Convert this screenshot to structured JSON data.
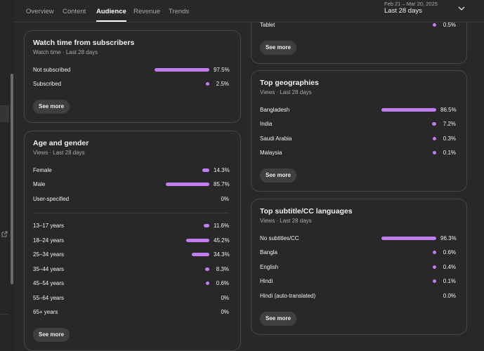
{
  "nav": {
    "tabs": [
      "Overview",
      "Content",
      "Audience",
      "Revenue",
      "Trends"
    ],
    "active_tab": "Audience"
  },
  "date_range": {
    "dates": "Feb 21 – Mar 20, 2025",
    "period": "Last 28 days"
  },
  "bar_color": "#c27cf2",
  "cards": [
    {
      "groups": [
        [
          {
            "label": "Tablet",
            "value": 0.5,
            "value_label": "0.5%"
          }
        ]
      ],
      "button": "See more"
    },
    {
      "title": "Watch time from subscribers",
      "subtitle": "Watch time · Last 28 days",
      "groups": [
        [
          {
            "label": "Not subscribed",
            "value": 97.5,
            "value_label": "97.5%"
          },
          {
            "label": "Subscribed",
            "value": 2.5,
            "value_label": "2.5%"
          }
        ]
      ],
      "button": "See more"
    },
    {
      "title": "Age and gender",
      "subtitle": "Views · Last 28 days",
      "groups": [
        [
          {
            "label": "Female",
            "value": 14.3,
            "value_label": "14.3%"
          },
          {
            "label": "Male",
            "value": 85.7,
            "value_label": "85.7%"
          },
          {
            "label": "User-specified",
            "value": 0,
            "value_label": "0%"
          }
        ],
        [
          {
            "label": "13–17 years",
            "value": 11.6,
            "value_label": "11.6%"
          },
          {
            "label": "18–24 years",
            "value": 45.2,
            "value_label": "45.2%"
          },
          {
            "label": "25–34 years",
            "value": 34.3,
            "value_label": "34.3%"
          },
          {
            "label": "35–44 years",
            "value": 8.3,
            "value_label": "8.3%"
          },
          {
            "label": "45–54 years",
            "value": 0.6,
            "value_label": "0.6%"
          },
          {
            "label": "55–64 years",
            "value": 0,
            "value_label": "0%"
          },
          {
            "label": "65+ years",
            "value": 0,
            "value_label": "0%"
          }
        ]
      ],
      "button": "See more"
    },
    {
      "title": "Top geographies",
      "subtitle": "Views · Last 28 days",
      "groups": [
        [
          {
            "label": "Bangladesh",
            "value": 86.5,
            "value_label": "86.5%"
          },
          {
            "label": "India",
            "value": 7.2,
            "value_label": "7.2%"
          },
          {
            "label": "Saudi Arabia",
            "value": 0.3,
            "value_label": "0.3%"
          },
          {
            "label": "Malaysia",
            "value": 0.1,
            "value_label": "0.1%"
          }
        ]
      ],
      "button": "See more"
    },
    {
      "title": "Top subtitle/CC languages",
      "subtitle": "Views · Last 28 days",
      "groups": [
        [
          {
            "label": "No subtitles/CC",
            "value": 96.3,
            "value_label": "96.3%"
          },
          {
            "label": "Bangla",
            "value": 0.6,
            "value_label": "0.6%"
          },
          {
            "label": "English",
            "value": 0.4,
            "value_label": "0.4%"
          },
          {
            "label": "Hindi",
            "value": 0.1,
            "value_label": "0.1%"
          },
          {
            "label": "Hindi (auto-translated)",
            "value": 0.0,
            "value_label": "0.0%"
          }
        ]
      ],
      "button": "See more"
    }
  ]
}
